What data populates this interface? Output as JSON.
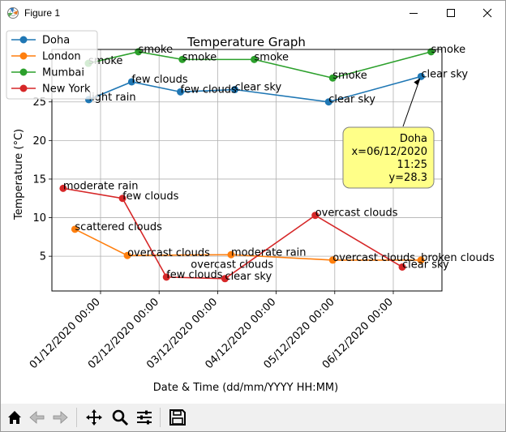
{
  "window": {
    "title": "Figure 1",
    "icon": "matplotlib-icon",
    "buttons": [
      "minimize-icon",
      "maximize-icon",
      "close-icon"
    ]
  },
  "toolbar": {
    "icons": [
      "home-icon",
      "back-arrow-icon",
      "forward-arrow-icon",
      "pan-icon",
      "zoom-icon",
      "configure-subplots-icon",
      "save-icon"
    ]
  },
  "chart_data": {
    "type": "line",
    "title": "Temperature Graph",
    "xlabel": "Date & Time (dd/mm/YYYY HH:MM)",
    "ylabel": "Temperature (°C)",
    "x_ticks": [
      "01/12/2020 00:00",
      "02/12/2020 00:00",
      "03/12/2020 00:00",
      "04/12/2020 00:00",
      "05/12/2020 00:00",
      "06/12/2020 00:00"
    ],
    "y_ticks": [
      5,
      10,
      15,
      20,
      25
    ],
    "ylim": [
      0.5,
      31.8
    ],
    "grid": true,
    "legend_position": "top-left",
    "series": [
      {
        "name": "Doha",
        "color": "#1f77b4",
        "x": [
          "2020-11-30 19:10",
          "2020-12-01 12:45",
          "2020-12-02 08:45",
          "2020-12-03 07:00",
          "2020-12-04 21:30",
          "2020-12-06 11:25"
        ],
        "y": [
          25.3,
          27.6,
          26.3,
          26.6,
          25.0,
          28.3
        ],
        "labels": [
          "light rain",
          "few clouds",
          "few clouds",
          "clear sky",
          "clear sky",
          "clear sky"
        ]
      },
      {
        "name": "London",
        "color": "#ff7f0e",
        "x": [
          "2020-11-30 13:30",
          "2020-12-01 11:00",
          "2020-12-03 05:30",
          "2020-12-04 23:10",
          "2020-12-06 11:20"
        ],
        "y": [
          8.5,
          5.1,
          5.2,
          4.5,
          4.5
        ],
        "labels": [
          "scattered clouds",
          "overcast clouds",
          "moderate rain",
          "overcast clouds",
          "broken clouds"
        ]
      },
      {
        "name": "Mumbai",
        "color": "#2ca02c",
        "x": [
          "2020-11-30 19:00",
          "2020-12-01 15:30",
          "2020-12-02 09:30",
          "2020-12-03 15:00",
          "2020-12-04 23:10",
          "2020-12-06 15:30"
        ],
        "y": [
          30.0,
          31.5,
          30.5,
          30.5,
          28.1,
          31.5
        ],
        "labels": [
          "smoke",
          "smoke",
          "smoke",
          "smoke",
          "smoke",
          "smoke"
        ]
      },
      {
        "name": "New York",
        "color": "#d62728",
        "x": [
          "2020-11-30 08:40",
          "2020-12-01 09:00",
          "2020-12-02 03:00",
          "2020-12-03 03:00",
          "2020-12-04 16:00",
          "2020-12-06 03:40"
        ],
        "y": [
          13.8,
          12.5,
          2.3,
          2.1,
          10.3,
          3.6
        ],
        "labels": [
          "moderate rain",
          "few clouds",
          "few clouds",
          "clear sky",
          "overcast clouds",
          "clear sky"
        ]
      }
    ],
    "extra_annotations": [
      {
        "text": "overcast clouds",
        "x": "2020-12-02 13:00",
        "y": 3.5
      }
    ],
    "tooltip": {
      "lines": [
        "Doha",
        "x=06/12/2020",
        "11:25",
        "y=28.3"
      ]
    }
  }
}
